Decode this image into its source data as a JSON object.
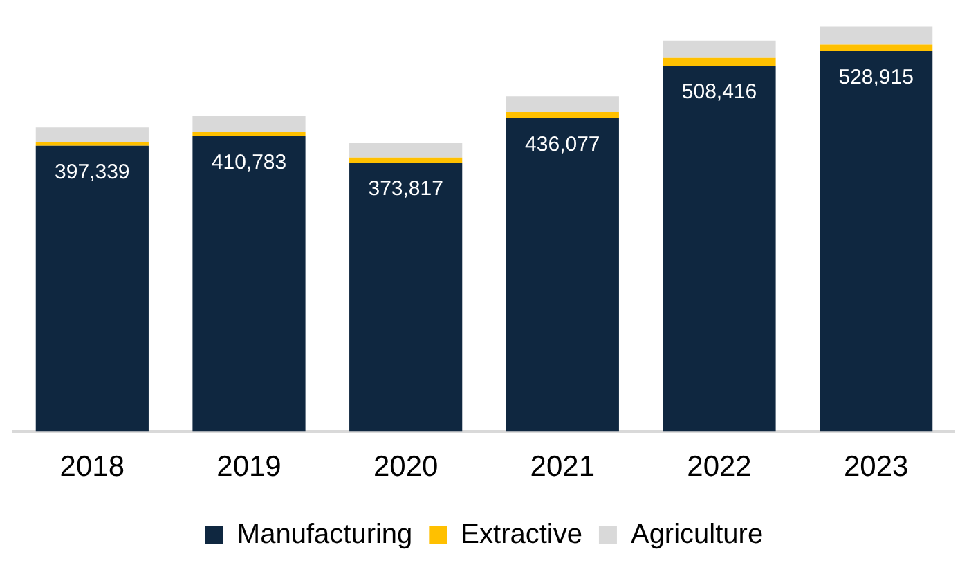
{
  "chart_data": {
    "type": "bar",
    "stacked": true,
    "categories": [
      "2018",
      "2019",
      "2020",
      "2021",
      "2022",
      "2023"
    ],
    "series": [
      {
        "name": "Manufacturing",
        "color": "#0f2740",
        "values": [
          397339,
          410783,
          373817,
          436077,
          508416,
          528915
        ],
        "value_labels": [
          "397,339",
          "410,783",
          "373,817",
          "436,077",
          "508,416",
          "528,915"
        ]
      },
      {
        "name": "Extractive",
        "color": "#ffc000",
        "values": [
          5500,
          5500,
          7000,
          8000,
          11000,
          9000
        ]
      },
      {
        "name": "Agriculture",
        "color": "#d9d9d9",
        "values": [
          20000,
          22000,
          20000,
          22000,
          24000,
          25000
        ]
      }
    ],
    "tick_labels": "x",
    "grid": false,
    "legend": "bottom"
  }
}
